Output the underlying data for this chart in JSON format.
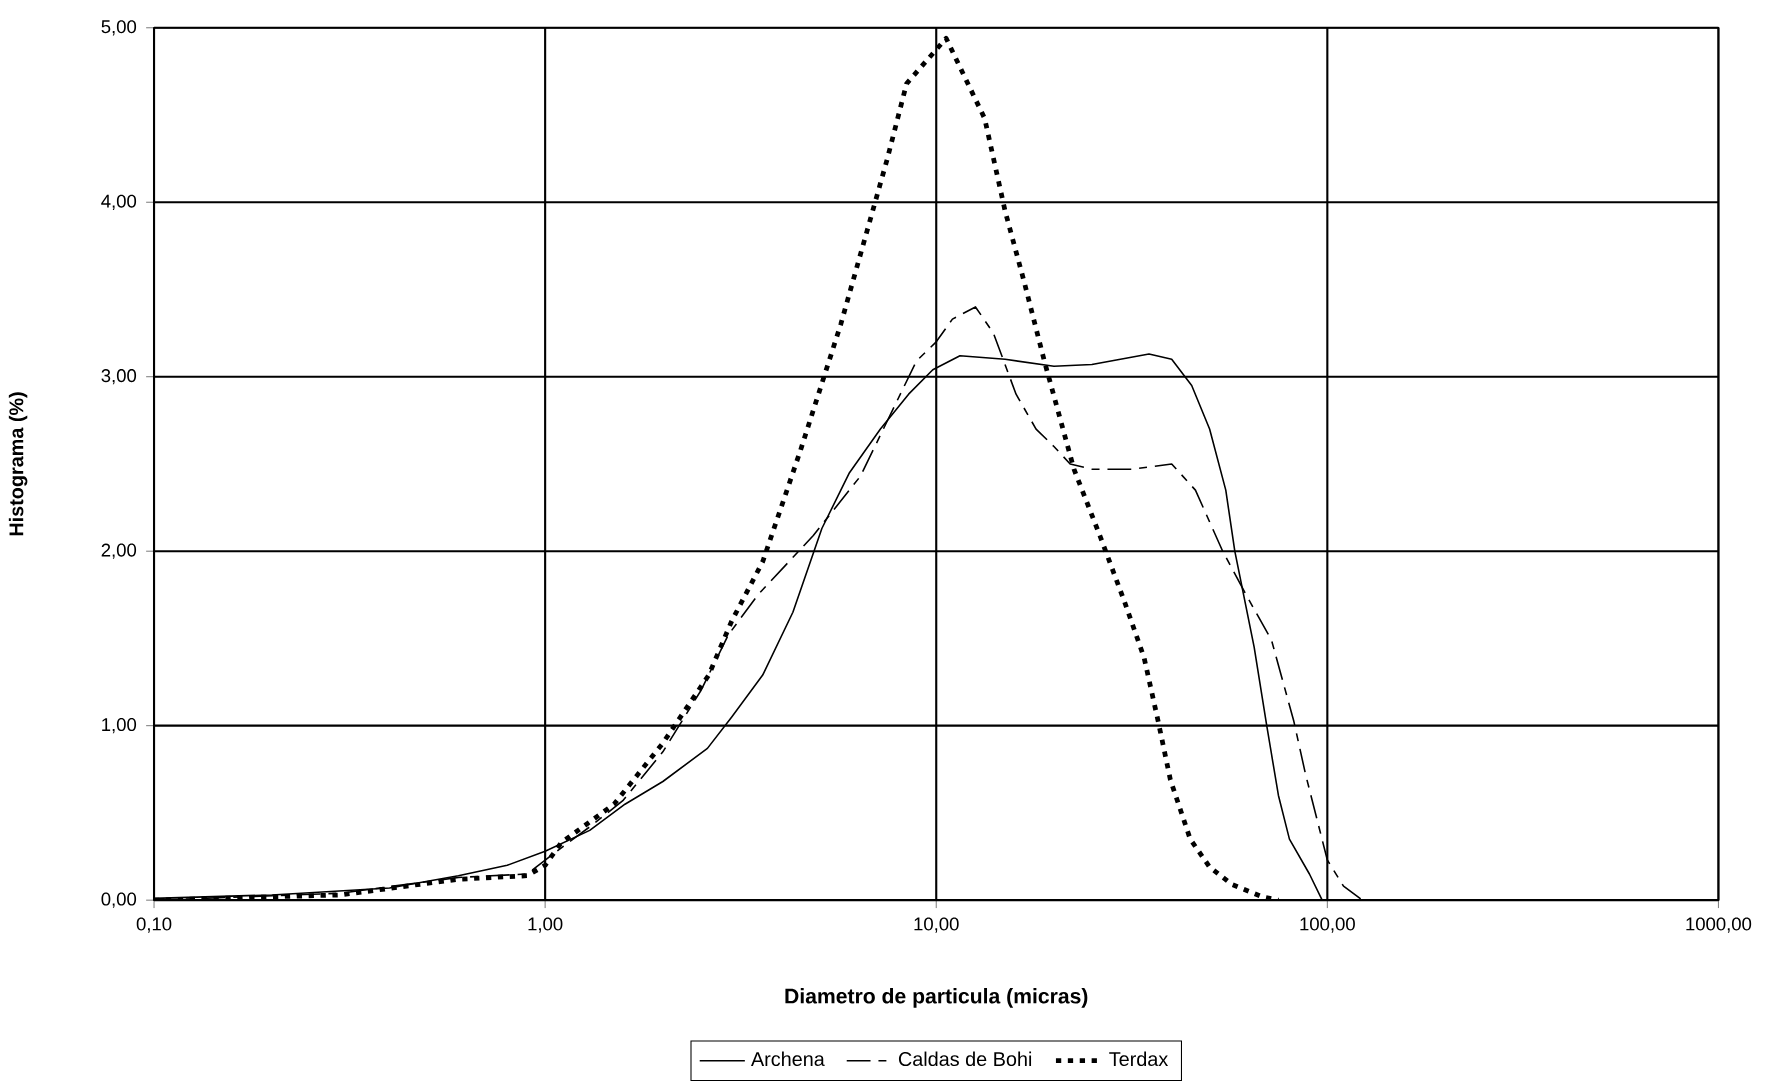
{
  "chart_data": {
    "type": "line",
    "xlabel": "Diametro de particula (micras)",
    "ylabel": "Histograma (%)",
    "log": "x",
    "grid": true,
    "legend": "bottom",
    "marker": "none",
    "xlim": [
      0.1,
      1000
    ],
    "ylim": [
      0,
      5
    ],
    "xticks": [
      {
        "value": 0.1,
        "label": "0,10"
      },
      {
        "value": 1,
        "label": "1,00"
      },
      {
        "value": 10,
        "label": "10,00"
      },
      {
        "value": 100,
        "label": "100,00"
      },
      {
        "value": 1000,
        "label": "1000,00"
      }
    ],
    "yticks": [
      {
        "value": 0,
        "label": "0,00"
      },
      {
        "value": 1,
        "label": "1,00"
      },
      {
        "value": 2,
        "label": "2,00"
      },
      {
        "value": 3,
        "label": "3,00"
      },
      {
        "value": 4,
        "label": "4,00"
      },
      {
        "value": 5,
        "label": "5,00"
      }
    ],
    "series": [
      {
        "name": "Archena",
        "color": "#000000",
        "line_style": "solid",
        "x": [
          0.1,
          0.2,
          0.4,
          0.6,
          0.8,
          1.0,
          1.3,
          1.6,
          2.0,
          2.6,
          3.0,
          3.6,
          4.3,
          5.1,
          6.0,
          7.2,
          8.5,
          9.8,
          11.5,
          15,
          20,
          25,
          35,
          40,
          45,
          50,
          55,
          58,
          65,
          70,
          75,
          80,
          90,
          97
        ],
        "values": [
          0.01,
          0.03,
          0.07,
          0.14,
          0.2,
          0.28,
          0.4,
          0.55,
          0.68,
          0.87,
          1.05,
          1.29,
          1.65,
          2.13,
          2.45,
          2.7,
          2.9,
          3.04,
          3.12,
          3.1,
          3.06,
          3.07,
          3.13,
          3.1,
          2.95,
          2.7,
          2.35,
          2.0,
          1.45,
          1.0,
          0.6,
          0.35,
          0.15,
          0
        ]
      },
      {
        "name": "Caldas de Bohi",
        "color": "#000000",
        "line_style": "dashed",
        "x": [
          0.1,
          0.3,
          0.6,
          0.9,
          1.1,
          1.3,
          1.58,
          2.0,
          2.5,
          2.94,
          3.5,
          4.85,
          6.4,
          8.9,
          10,
          11,
          12.6,
          14,
          16,
          18,
          20,
          22,
          25,
          31.6,
          40,
          46,
          54,
          62,
          72,
          82,
          88,
          100,
          110,
          123
        ],
        "values": [
          0,
          0.04,
          0.13,
          0.15,
          0.3,
          0.42,
          0.57,
          0.85,
          1.2,
          1.52,
          1.75,
          2.09,
          2.43,
          3.09,
          3.2,
          3.33,
          3.4,
          3.25,
          2.9,
          2.7,
          2.6,
          2.5,
          2.47,
          2.47,
          2.5,
          2.35,
          2.0,
          1.75,
          1.49,
          1.03,
          0.72,
          0.23,
          0.08,
          0
        ]
      },
      {
        "name": "Terdax",
        "color": "#000000",
        "line_style": "dotted",
        "x": [
          0.1,
          0.3,
          0.6,
          0.9,
          1.0,
          1.1,
          1.5,
          2.0,
          2.62,
          3.0,
          3.6,
          4.5,
          5.7,
          6.8,
          7.5,
          8.4,
          10.6,
          13.3,
          15,
          16.8,
          18.9,
          22.5,
          26.2,
          30.3,
          34,
          36.9,
          39.7,
          44.6,
          50,
          57,
          68,
          75
        ],
        "values": [
          0,
          0.03,
          0.12,
          0.14,
          0.2,
          0.33,
          0.55,
          0.9,
          1.29,
          1.6,
          1.94,
          2.58,
          3.3,
          3.91,
          4.25,
          4.68,
          4.94,
          4.48,
          3.95,
          3.54,
          3.09,
          2.47,
          2.09,
          1.71,
          1.39,
          1.03,
          0.69,
          0.35,
          0.19,
          0.09,
          0.02,
          0
        ]
      }
    ]
  }
}
